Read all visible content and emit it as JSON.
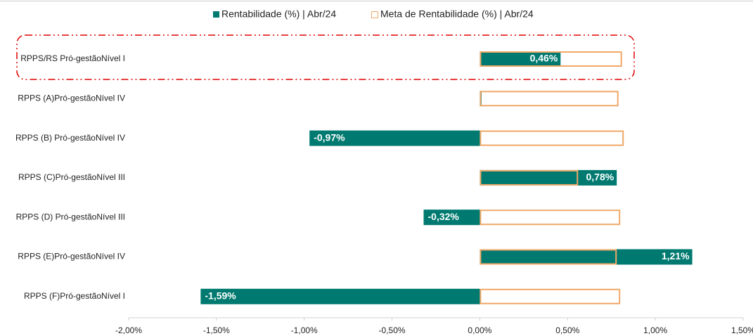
{
  "chart_data": {
    "type": "bar",
    "orientation": "horizontal",
    "categories": [
      "RPPS/RS Pró-gestãoNível I",
      "RPPS (A)Pró-gestãoNível IV",
      "RPPS (B) Pró-gestãoNível IV",
      "RPPS (C)Pró-gestãoNível III",
      "RPPS (D) Pró-gestãoNível III",
      "RPPS (E)Pró-gestãoNível IV",
      "RPPS (F)Pró-gestãoNível I"
    ],
    "series": [
      {
        "name": "Rentabilidade (%) | Abr/24",
        "color": "#007a70",
        "values": [
          0.46,
          0.01,
          -0.97,
          0.78,
          -0.32,
          1.21,
          -1.59
        ],
        "value_labels": [
          "0,46%",
          null,
          "-0,97%",
          "0,78%",
          "-0,32%",
          "1,21%",
          "-1,59%"
        ]
      },
      {
        "name": "Meta de Rentabilidade (%) | Abr/24",
        "color": "#f0a868",
        "values": [
          0.81,
          0.79,
          0.82,
          0.56,
          0.8,
          0.78,
          0.8
        ]
      }
    ],
    "xlim": [
      -2,
      1.5
    ],
    "xticks": [
      {
        "value": -2,
        "label": "-2,00%"
      },
      {
        "value": -1.5,
        "label": "-1,50%"
      },
      {
        "value": -1,
        "label": "-1,00%"
      },
      {
        "value": -0.5,
        "label": "-0,50%"
      },
      {
        "value": 0,
        "label": "0,00%"
      },
      {
        "value": 0.5,
        "label": "0,50%"
      },
      {
        "value": 1,
        "label": "1,00%"
      },
      {
        "value": 1.5,
        "label": "1,50%"
      }
    ],
    "legend": "top"
  }
}
